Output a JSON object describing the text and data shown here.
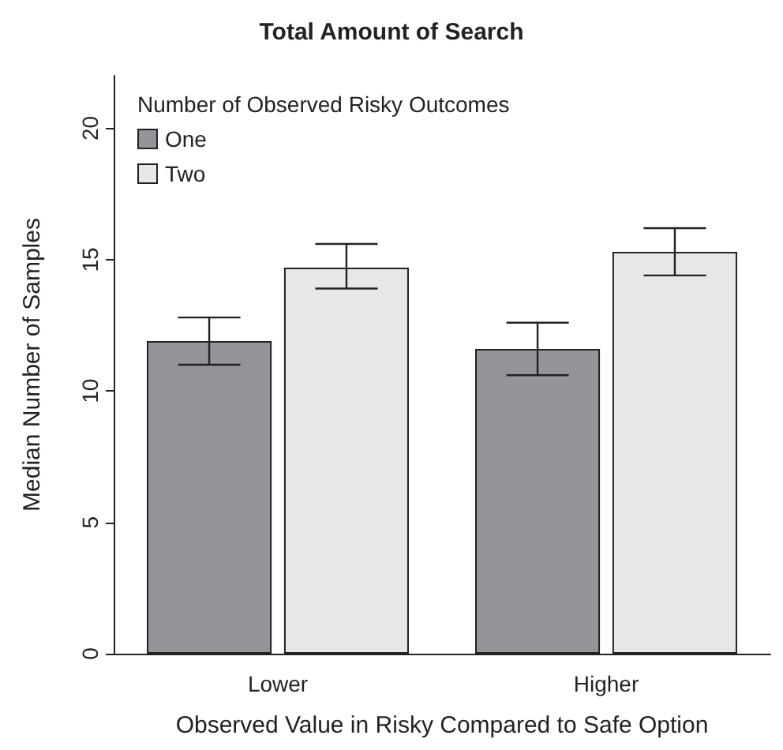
{
  "chart_data": {
    "type": "bar",
    "title": "Total Amount of Search",
    "xlabel": "Observed Value in Risky Compared to Safe Option",
    "ylabel": "Median Number of Samples",
    "legend_title": "Number of Observed Risky Outcomes",
    "categories": [
      "Lower",
      "Higher"
    ],
    "series": [
      {
        "name": "One",
        "color": "#939598",
        "values": [
          11.9,
          11.6
        ],
        "errors": [
          [
            11.0,
            12.8
          ],
          [
            10.6,
            12.6
          ]
        ]
      },
      {
        "name": "Two",
        "color": "#e6e7e8",
        "values": [
          14.7,
          15.3
        ],
        "errors": [
          [
            13.9,
            15.6
          ],
          [
            14.4,
            16.2
          ]
        ]
      }
    ],
    "ylim": [
      0,
      22
    ],
    "yticks": [
      0,
      5,
      10,
      15,
      20
    ],
    "grid": false,
    "legend": "top left"
  }
}
